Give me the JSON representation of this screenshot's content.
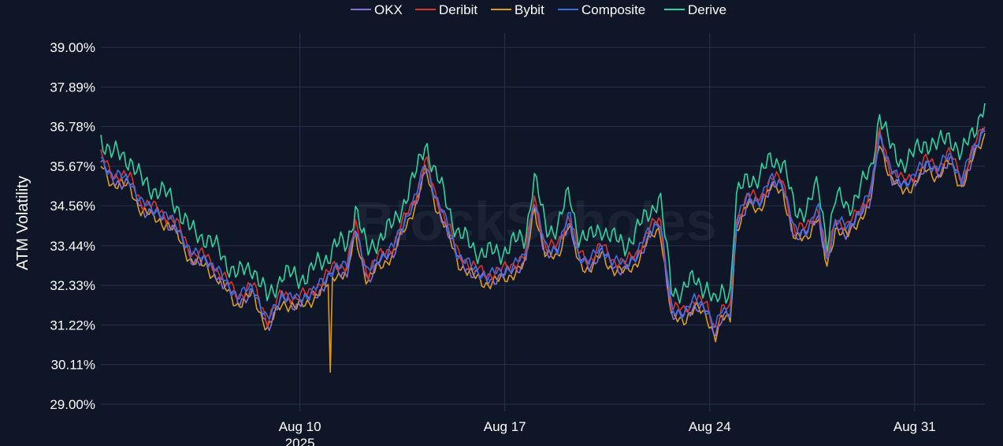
{
  "watermark": "BlockScholes",
  "chart_data": {
    "type": "line",
    "ylabel": "ATM Volatility",
    "y_ticks": [
      "29.00%",
      "30.11%",
      "31.22%",
      "32.33%",
      "33.44%",
      "34.56%",
      "35.67%",
      "36.78%",
      "37.89%",
      "39.00%"
    ],
    "y_tick_values": [
      29.0,
      30.11,
      31.22,
      32.33,
      33.44,
      34.56,
      35.67,
      36.78,
      37.89,
      39.0
    ],
    "ylim": [
      28.8,
      39.4
    ],
    "x_ticks": [
      {
        "label": "Aug 10",
        "sub": "2025",
        "day": 10
      },
      {
        "label": "Aug 17",
        "sub": "",
        "day": 17
      },
      {
        "label": "Aug 24",
        "sub": "",
        "day": 24
      },
      {
        "label": "Aug 31",
        "sub": "",
        "day": 31
      }
    ],
    "xlim": [
      3.2,
      33.4
    ],
    "grid": true,
    "legend_position": "top-center",
    "series": [
      {
        "name": "OKX",
        "color": "#8a6fd6",
        "offset": -0.12
      },
      {
        "name": "Deribit",
        "color": "#d8342c",
        "offset": 0.05
      },
      {
        "name": "Bybit",
        "color": "#e09a1a",
        "offset": -0.22
      },
      {
        "name": "Composite",
        "color": "#3b6fe0",
        "offset": 0.0
      },
      {
        "name": "Derive",
        "color": "#2ed3a0",
        "offset": 0.6
      }
    ],
    "base_curve": [
      [
        3.2,
        35.9
      ],
      [
        3.6,
        35.4
      ],
      [
        4.2,
        35.3
      ],
      [
        4.6,
        34.6
      ],
      [
        5.2,
        34.4
      ],
      [
        5.8,
        34.0
      ],
      [
        6.3,
        33.2
      ],
      [
        6.8,
        33.1
      ],
      [
        7.4,
        32.5
      ],
      [
        7.9,
        32.0
      ],
      [
        8.4,
        32.3
      ],
      [
        8.9,
        31.3
      ],
      [
        9.4,
        32.1
      ],
      [
        9.9,
        31.9
      ],
      [
        10.3,
        32.1
      ],
      [
        10.8,
        32.4
      ],
      [
        11.2,
        32.9
      ],
      [
        11.6,
        32.8
      ],
      [
        11.9,
        34.0
      ],
      [
        12.3,
        32.6
      ],
      [
        12.7,
        33.1
      ],
      [
        13.2,
        33.4
      ],
      [
        13.6,
        34.2
      ],
      [
        14.0,
        34.9
      ],
      [
        14.3,
        35.8
      ],
      [
        14.6,
        34.9
      ],
      [
        15.0,
        34.1
      ],
      [
        15.4,
        33.2
      ],
      [
        15.9,
        32.8
      ],
      [
        16.4,
        32.6
      ],
      [
        16.9,
        32.7
      ],
      [
        17.3,
        32.9
      ],
      [
        17.7,
        33.1
      ],
      [
        18.0,
        34.8
      ],
      [
        18.4,
        33.3
      ],
      [
        18.8,
        33.4
      ],
      [
        19.2,
        34.3
      ],
      [
        19.5,
        33.2
      ],
      [
        19.9,
        33.0
      ],
      [
        20.3,
        33.4
      ],
      [
        20.7,
        33.0
      ],
      [
        21.1,
        32.9
      ],
      [
        21.5,
        33.2
      ],
      [
        21.9,
        33.8
      ],
      [
        22.3,
        34.2
      ],
      [
        22.7,
        31.6
      ],
      [
        23.1,
        31.6
      ],
      [
        23.5,
        31.9
      ],
      [
        23.9,
        31.7
      ],
      [
        24.2,
        31.1
      ],
      [
        24.4,
        31.6
      ],
      [
        24.7,
        31.6
      ],
      [
        24.9,
        34.1
      ],
      [
        25.3,
        34.8
      ],
      [
        25.7,
        34.7
      ],
      [
        26.1,
        35.3
      ],
      [
        26.5,
        35.2
      ],
      [
        26.9,
        33.8
      ],
      [
        27.3,
        33.9
      ],
      [
        27.7,
        34.5
      ],
      [
        28.0,
        33.0
      ],
      [
        28.3,
        34.2
      ],
      [
        28.7,
        33.9
      ],
      [
        29.1,
        34.4
      ],
      [
        29.5,
        34.9
      ],
      [
        29.8,
        36.6
      ],
      [
        30.2,
        35.5
      ],
      [
        30.6,
        35.2
      ],
      [
        31.0,
        35.4
      ],
      [
        31.4,
        35.8
      ],
      [
        31.8,
        35.6
      ],
      [
        32.2,
        36.0
      ],
      [
        32.6,
        35.3
      ],
      [
        33.0,
        36.1
      ],
      [
        33.4,
        36.8
      ]
    ],
    "bybit_spike": {
      "day": 11.05,
      "value": 29.9
    }
  }
}
